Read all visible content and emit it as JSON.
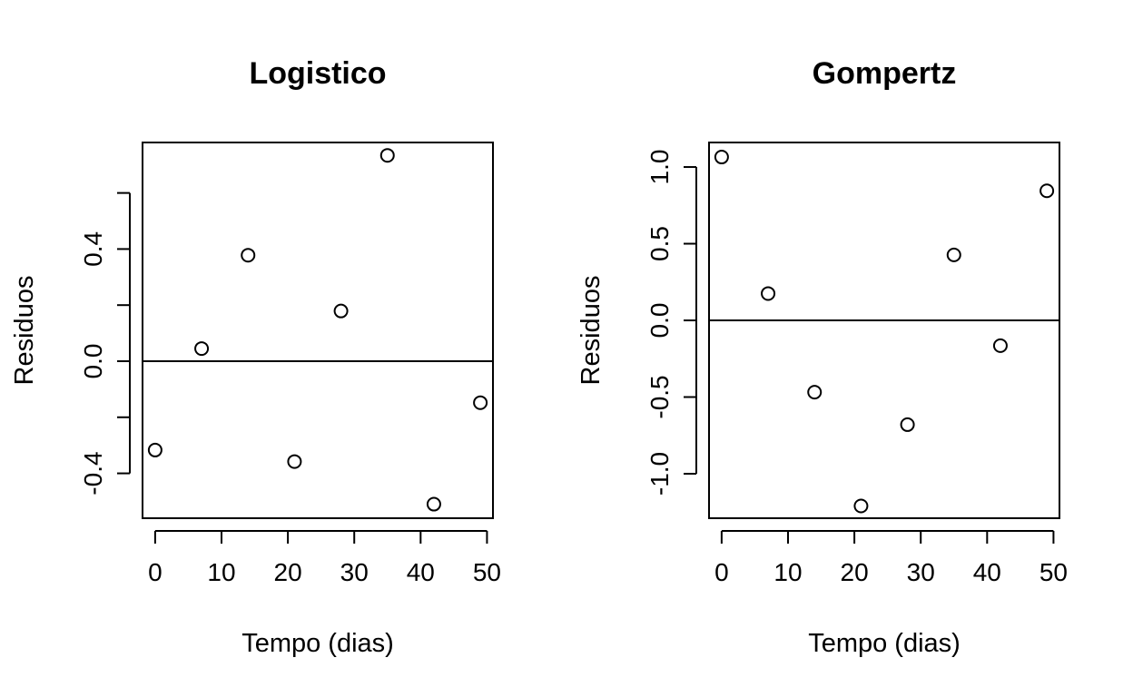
{
  "chart_data": [
    {
      "type": "scatter",
      "title": "Logistico",
      "xlabel": "Tempo (dias)",
      "ylabel": "Residuos",
      "xlim": [
        -1.9,
        50.9
      ],
      "ylim": [
        -0.56,
        0.78
      ],
      "xticks": [
        0,
        10,
        20,
        30,
        40,
        50
      ],
      "yticks": [
        -0.4,
        -0.2,
        0.0,
        0.2,
        0.4,
        0.6
      ],
      "ytick_labels": [
        "-0.4",
        "",
        "0.0",
        "",
        "0.4",
        ""
      ],
      "hline": 0,
      "grid": false,
      "x": [
        0,
        7,
        14,
        21,
        28,
        35,
        42,
        49
      ],
      "y": [
        -0.317,
        0.045,
        0.378,
        -0.358,
        0.179,
        0.734,
        -0.51,
        -0.148
      ]
    },
    {
      "type": "scatter",
      "title": "Gompertz",
      "xlabel": "Tempo (dias)",
      "ylabel": "Residuos",
      "xlim": [
        -1.9,
        50.9
      ],
      "ylim": [
        -1.29,
        1.16
      ],
      "xticks": [
        0,
        10,
        20,
        30,
        40,
        50
      ],
      "yticks": [
        -1.0,
        -0.5,
        0.0,
        0.5,
        1.0
      ],
      "ytick_labels": [
        "-1.0",
        "-0.5",
        "0.0",
        "0.5",
        "1.0"
      ],
      "hline": 0,
      "grid": false,
      "x": [
        0,
        7,
        14,
        21,
        28,
        35,
        42,
        49
      ],
      "y": [
        1.065,
        0.175,
        -0.468,
        -1.21,
        -0.68,
        0.427,
        -0.165,
        0.845
      ]
    }
  ]
}
